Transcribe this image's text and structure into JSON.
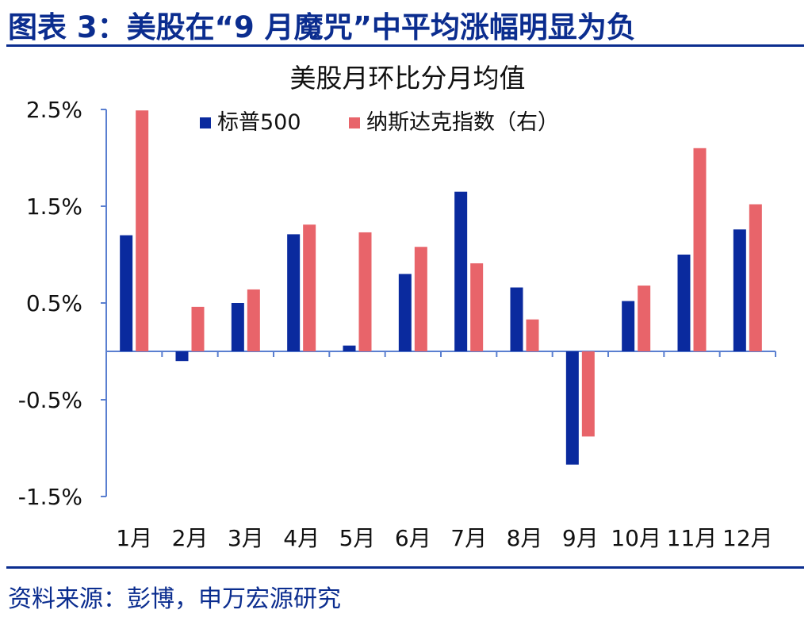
{
  "figure": {
    "title": "图表 3：美股在“9 月魔咒”中平均涨幅明显为负",
    "source": "资料来源：彭博，申万宏源研究"
  },
  "colors": {
    "brand": "#0b2d8f",
    "sp500": "#0a2a9e",
    "nasdaq": "#e8646a",
    "axis": "#5a7fd0"
  },
  "chart_data": {
    "type": "bar",
    "title": "美股月环比分月均值",
    "categories": [
      "1月",
      "2月",
      "3月",
      "4月",
      "5月",
      "6月",
      "7月",
      "8月",
      "9月",
      "10月",
      "11月",
      "12月"
    ],
    "series": [
      {
        "name": "标普500",
        "values": [
          1.2,
          -0.1,
          0.5,
          1.21,
          0.06,
          0.8,
          1.65,
          0.66,
          -1.17,
          0.52,
          1.0,
          1.26
        ]
      },
      {
        "name": "纳斯达克指数（右）",
        "values": [
          2.49,
          0.46,
          0.64,
          1.31,
          1.23,
          1.08,
          0.91,
          0.33,
          -0.88,
          0.68,
          2.1,
          1.52
        ]
      }
    ],
    "yticks": [
      "2.5%",
      "1.5%",
      "0.5%",
      "-0.5%",
      "-1.5%"
    ],
    "ytick_values": [
      2.5,
      1.5,
      0.5,
      -0.5,
      -1.5
    ],
    "ylim": [
      -1.5,
      2.5
    ],
    "legend_position": "top",
    "grid": false
  }
}
